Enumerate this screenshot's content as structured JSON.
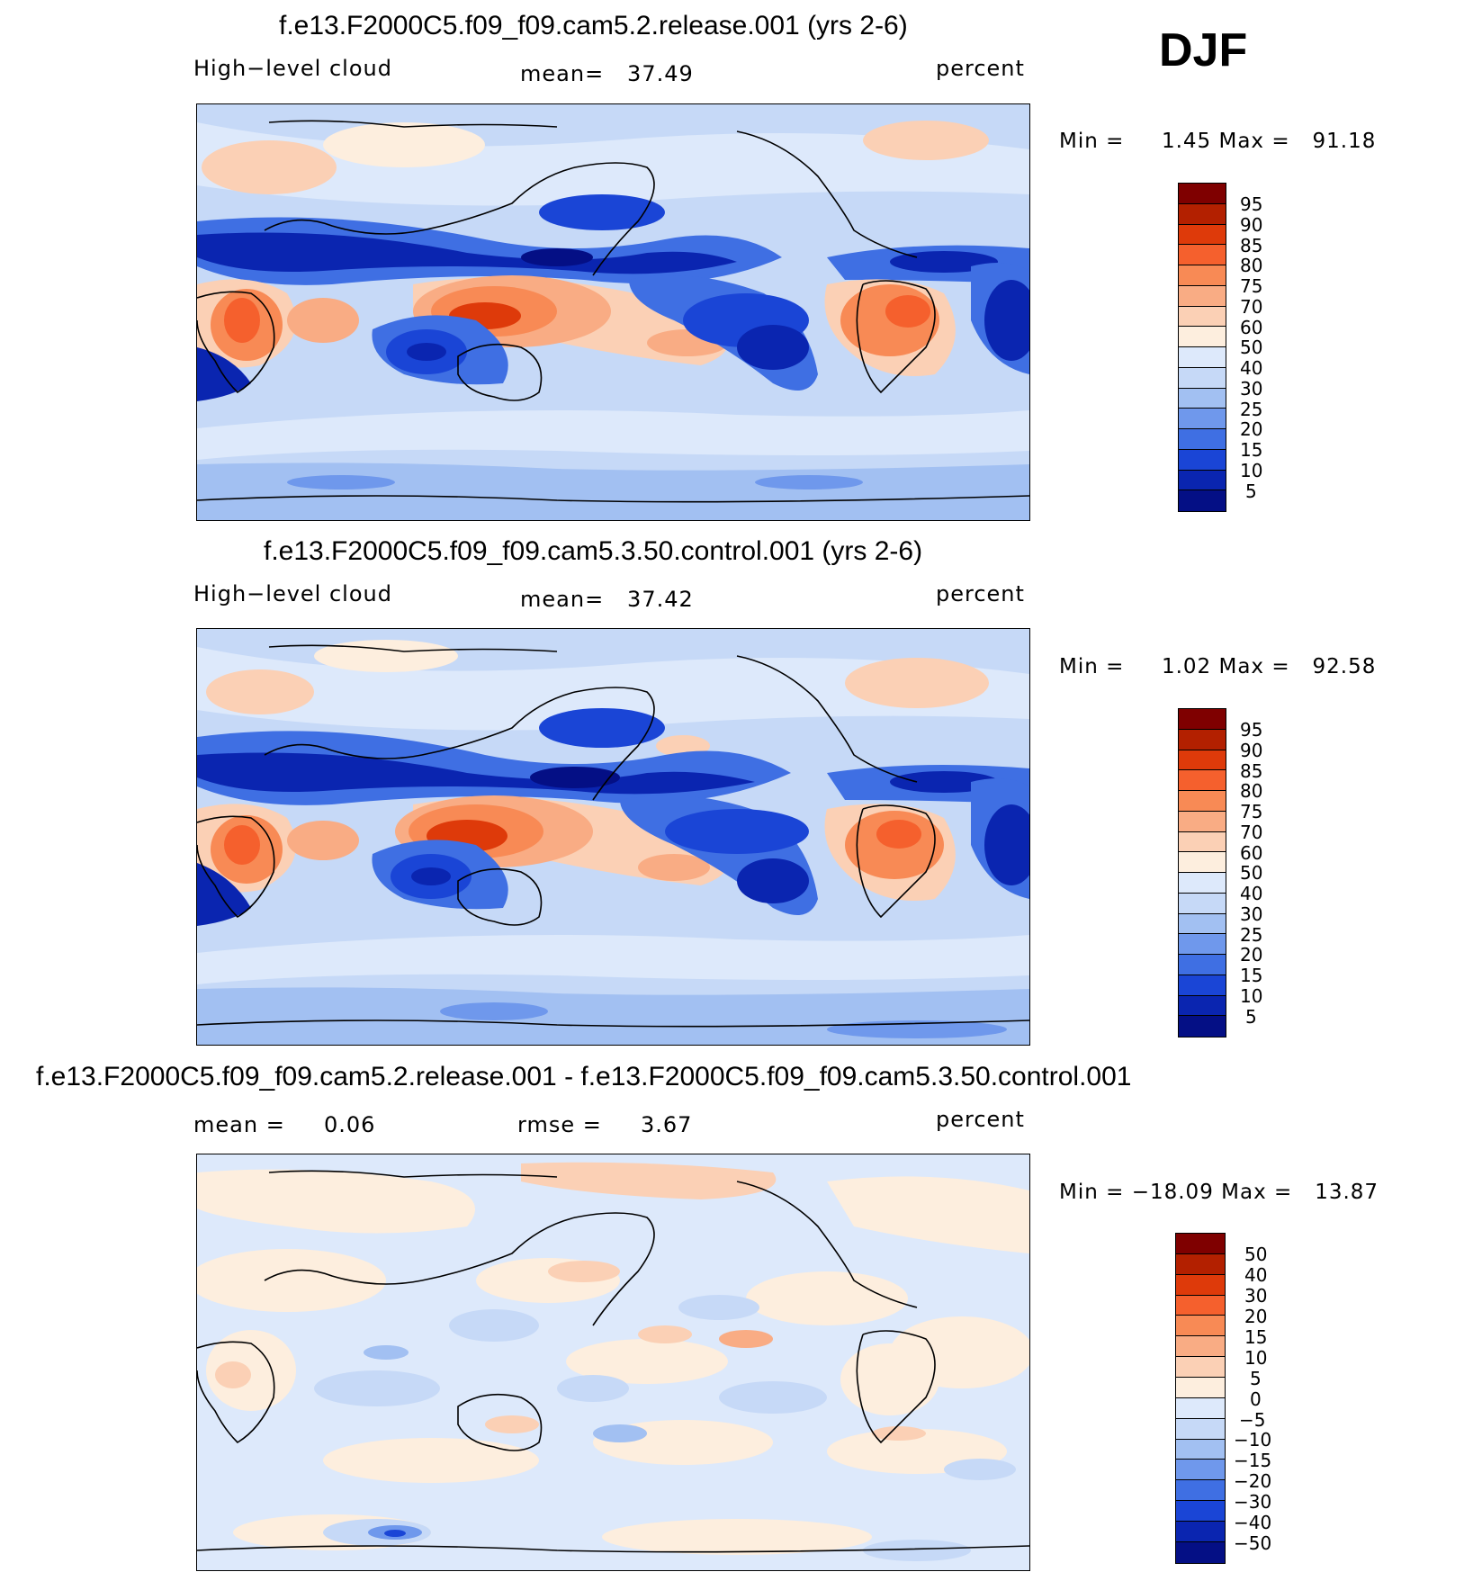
{
  "season": "DJF",
  "panels": [
    {
      "title": "f.e13.F2000C5.f09_f09.cam5.2.release.001 (yrs 2-6)",
      "left_label": "High−level cloud",
      "center_label": "mean=   37.49",
      "right_label": "percent",
      "minmax": "Min =     1.45 Max =   91.18",
      "colorbar": {
        "labels": [
          "95",
          "90",
          "85",
          "80",
          "75",
          "70",
          "60",
          "50",
          "40",
          "30",
          "25",
          "20",
          "15",
          "10",
          "5"
        ],
        "colors": [
          "#7f0000",
          "#b32000",
          "#de3a0a",
          "#f5602d",
          "#f88a55",
          "#f9ac84",
          "#fbd0b5",
          "#fdeede",
          "#dde9fb",
          "#c6d9f7",
          "#a2c0f2",
          "#6f98ec",
          "#3f6fe3",
          "#1a45d6",
          "#0a25b0",
          "#040f85"
        ]
      }
    },
    {
      "title": "f.e13.F2000C5.f09_f09.cam5.3.50.control.001 (yrs 2-6)",
      "left_label": "High−level cloud",
      "center_label": "mean=   37.42",
      "right_label": "percent",
      "minmax": "Min =     1.02 Max =   92.58",
      "colorbar": {
        "labels": [
          "95",
          "90",
          "85",
          "80",
          "75",
          "70",
          "60",
          "50",
          "40",
          "30",
          "25",
          "20",
          "15",
          "10",
          "5"
        ],
        "colors": [
          "#7f0000",
          "#b32000",
          "#de3a0a",
          "#f5602d",
          "#f88a55",
          "#f9ac84",
          "#fbd0b5",
          "#fdeede",
          "#dde9fb",
          "#c6d9f7",
          "#a2c0f2",
          "#6f98ec",
          "#3f6fe3",
          "#1a45d6",
          "#0a25b0",
          "#040f85"
        ]
      }
    },
    {
      "title": "f.e13.F2000C5.f09_f09.cam5.2.release.001 - f.e13.F2000C5.f09_f09.cam5.3.50.control.001",
      "left_label": "mean =     0.06",
      "center_label": "rmse =     3.67",
      "right_label": "percent",
      "minmax": "Min = −18.09 Max =   13.87",
      "colorbar": {
        "labels": [
          "50",
          "40",
          "30",
          "20",
          "15",
          "10",
          "5",
          "0",
          "−5",
          "−10",
          "−15",
          "−20",
          "−30",
          "−40",
          "−50"
        ],
        "colors": [
          "#7f0000",
          "#b32000",
          "#de3a0a",
          "#f5602d",
          "#f88a55",
          "#f9ac84",
          "#fbd0b5",
          "#fdeede",
          "#dde9fb",
          "#c6d9f7",
          "#a2c0f2",
          "#6f98ec",
          "#3f6fe3",
          "#1a45d6",
          "#0a25b0",
          "#040f85"
        ]
      }
    }
  ]
}
